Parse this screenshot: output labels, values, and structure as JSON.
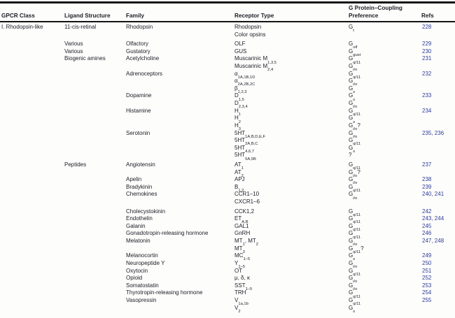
{
  "page": {
    "background_color": "#fdfdfc",
    "text_color": "#1d1d26",
    "refs_link_color": "#2e3a94",
    "rule_color": "#141414"
  },
  "table": {
    "columns": {
      "gpcr_class": "GPCR Class",
      "ligand_structure": "Ligand Structure",
      "family": "Family",
      "receptor_type": "Receptor Type",
      "g_protein_line1": "G Protein–Coupling",
      "g_protein_line2": "Preference",
      "refs": "Refs"
    },
    "subscript_marker": "~",
    "rows": [
      {
        "cls": "I. Rhodopsin-like",
        "ligand": "11-cis-retinal",
        "family": "Rhodopsin",
        "receptor": "Rhodopsin",
        "g": "G~t~",
        "refs": "228",
        "gap": false
      },
      {
        "cls": "",
        "ligand": "",
        "family": "",
        "receptor": "Color opsins",
        "g": "",
        "refs": "",
        "gap": false
      },
      {
        "cls": "",
        "ligand": "Various",
        "family": "Olfactory",
        "receptor": "OLF",
        "g": "G~olf~",
        "refs": "229",
        "gap": true
      },
      {
        "cls": "",
        "ligand": "Various",
        "family": "Gustatory",
        "receptor": "GUS",
        "g": "G~gust~",
        "refs": "230",
        "gap": false
      },
      {
        "cls": "",
        "ligand": "Biogenic amines",
        "family": "Acetylcholine",
        "receptor": "Muscarinic M~1,3,5~",
        "g": "G~q/11~",
        "refs": "231",
        "gap": false
      },
      {
        "cls": "",
        "ligand": "",
        "family": "",
        "receptor": "Muscarinic M~2,4~",
        "g": "G~i/o~",
        "refs": "",
        "gap": false
      },
      {
        "cls": "",
        "ligand": "",
        "family": "Adrenoceptors",
        "receptor": "α~1A,1B,1D~",
        "g": "G~q/11~",
        "refs": "232",
        "gap": false
      },
      {
        "cls": "",
        "ligand": "",
        "family": "",
        "receptor": "α~2A,2B,2C~",
        "g": "G~i/o~",
        "refs": "",
        "gap": false
      },
      {
        "cls": "",
        "ligand": "",
        "family": "",
        "receptor": "β~1,2,3~",
        "g": "G~s~",
        "refs": "",
        "gap": false
      },
      {
        "cls": "",
        "ligand": "",
        "family": "Dopamine",
        "receptor": "D~1,5~",
        "g": "G~s~",
        "refs": "233",
        "gap": false
      },
      {
        "cls": "",
        "ligand": "",
        "family": "",
        "receptor": "D~2,3,4~",
        "g": "G~i/o~",
        "refs": "",
        "gap": false
      },
      {
        "cls": "",
        "ligand": "",
        "family": "Histamine",
        "receptor": "H~1~",
        "g": "G~q/11~",
        "refs": "234",
        "gap": false
      },
      {
        "cls": "",
        "ligand": "",
        "family": "",
        "receptor": "H~2~",
        "g": "G~s~",
        "refs": "",
        "gap": false
      },
      {
        "cls": "",
        "ligand": "",
        "family": "",
        "receptor": "H~3~",
        "g": "G~i/o~?",
        "refs": "",
        "gap": false
      },
      {
        "cls": "",
        "ligand": "",
        "family": "Serotonin",
        "receptor": "5HT~1A,B,D,E,F~",
        "g": "G~i/o~",
        "refs": "235, 236",
        "gap": false
      },
      {
        "cls": "",
        "ligand": "",
        "family": "",
        "receptor": "5HT~2A,B,C~",
        "g": "G~q/11~",
        "refs": "",
        "gap": false
      },
      {
        "cls": "",
        "ligand": "",
        "family": "",
        "receptor": "5HT~4,6,7~",
        "g": "G~s~",
        "refs": "",
        "gap": false
      },
      {
        "cls": "",
        "ligand": "",
        "family": "",
        "receptor": "5HT~5A,5B~",
        "g": "?",
        "refs": "",
        "gap": false
      },
      {
        "cls": "",
        "ligand": "Peptides",
        "family": "Angiotensin",
        "receptor": "AT~1~",
        "g": "G~q/11~",
        "refs": "237",
        "gap": true
      },
      {
        "cls": "",
        "ligand": "",
        "family": "",
        "receptor": "AT~2~",
        "g": "G~i/o~?",
        "refs": "",
        "gap": false
      },
      {
        "cls": "",
        "ligand": "",
        "family": "Apelin",
        "receptor": "APJ",
        "g": "G~i/o~",
        "refs": "238",
        "gap": false
      },
      {
        "cls": "",
        "ligand": "",
        "family": "Bradykinin",
        "receptor": "B~1,2~",
        "g": "G~q/11~",
        "refs": "239",
        "gap": false
      },
      {
        "cls": "",
        "ligand": "",
        "family": "Chemokines",
        "receptor": "CCR1–10",
        "g": "G~i/o~",
        "refs": "240, 241",
        "gap": false
      },
      {
        "cls": "",
        "ligand": "",
        "family": "",
        "receptor": "CXCR1–6",
        "g": "",
        "refs": "",
        "gap": false
      },
      {
        "cls": "",
        "ligand": "",
        "family": "Cholecystokinin",
        "receptor": "CCK1,2",
        "g": "G~q/11~",
        "refs": "242",
        "gap": true
      },
      {
        "cls": "",
        "ligand": "",
        "family": "Endothelin",
        "receptor": "ET~A,B~",
        "g": "G~q/11~",
        "refs": "243, 244",
        "gap": false
      },
      {
        "cls": "",
        "ligand": "",
        "family": "Galanin",
        "receptor": "GAL1",
        "g": "G~q/11~",
        "refs": "245",
        "gap": false
      },
      {
        "cls": "",
        "ligand": "",
        "family": "Gonadotropin-releasing hormone",
        "receptor": "GnRH",
        "g": "G~q/11~",
        "refs": "246",
        "gap": false
      },
      {
        "cls": "",
        "ligand": "",
        "family": "Melatonin",
        "receptor": "MT~1~, MT~2~",
        "g": "G~i/o~",
        "refs": "247, 248",
        "gap": false
      },
      {
        "cls": "",
        "ligand": "",
        "family": "",
        "receptor": "MT~3~",
        "g": "G~q/11~?",
        "refs": "",
        "gap": false
      },
      {
        "cls": "",
        "ligand": "",
        "family": "Melanocortin",
        "receptor": "MC~1–5~",
        "g": "G~s~",
        "refs": "249",
        "gap": false
      },
      {
        "cls": "",
        "ligand": "",
        "family": "Neuropeptide Y",
        "receptor": "Y~1–5~",
        "g": "G~i/o~",
        "refs": "250",
        "gap": false
      },
      {
        "cls": "",
        "ligand": "",
        "family": "Oxytocin",
        "receptor": "OT",
        "g": "G~q/11~",
        "refs": "251",
        "gap": false
      },
      {
        "cls": "",
        "ligand": "",
        "family": "Opioid",
        "receptor": "μ, δ, κ",
        "g": "G~i/o~",
        "refs": "252",
        "gap": false
      },
      {
        "cls": "",
        "ligand": "",
        "family": "Somatostatin",
        "receptor": "SST~1–5~",
        "g": "G~i/o~",
        "refs": "253",
        "gap": false
      },
      {
        "cls": "",
        "ligand": "",
        "family": "Thyrotropin-releasing hormone",
        "receptor": "TRH",
        "g": "G~q/11~",
        "refs": "254",
        "gap": false
      },
      {
        "cls": "",
        "ligand": "",
        "family": "Vasopressin",
        "receptor": "V~1a,1b~",
        "g": "G~q/11~",
        "refs": "255",
        "gap": false
      },
      {
        "cls": "",
        "ligand": "",
        "family": "",
        "receptor": "V~2~",
        "g": "G~s~",
        "refs": "",
        "gap": false
      }
    ]
  }
}
